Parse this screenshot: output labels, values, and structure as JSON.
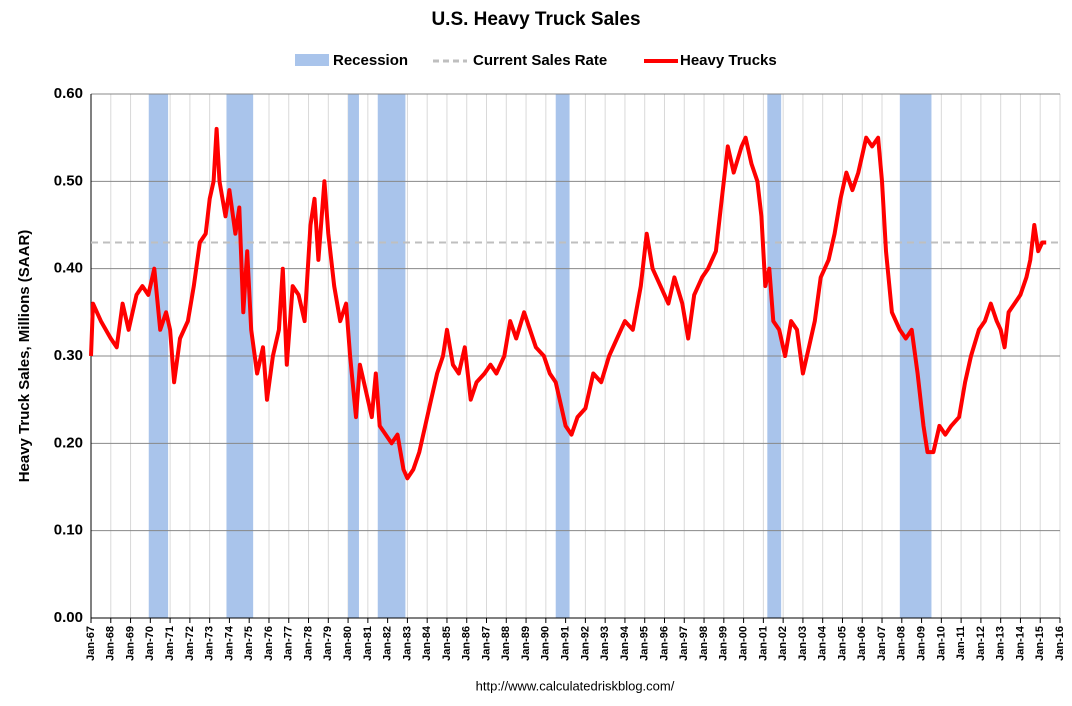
{
  "chart_data": {
    "type": "line",
    "title": "U.S. Heavy Truck Sales",
    "ylabel": "Heavy Truck Sales, Millions (SAAR)",
    "source": "http://www.calculatedriskblog.com/",
    "ylim": [
      0,
      0.6
    ],
    "yticks": [
      {
        "value": 0,
        "label": "0.00"
      },
      {
        "value": 0.1,
        "label": "0.10"
      },
      {
        "value": 0.2,
        "label": "0.20"
      },
      {
        "value": 0.3,
        "label": "0.30"
      },
      {
        "value": 0.4,
        "label": "0.40"
      },
      {
        "value": 0.5,
        "label": "0.50"
      },
      {
        "value": 0.6,
        "label": "0.60"
      }
    ],
    "xlim": [
      1967,
      2016
    ],
    "xticks": [
      {
        "value": 1967,
        "label": "Jan-67"
      },
      {
        "value": 1968,
        "label": "Jan-68"
      },
      {
        "value": 1969,
        "label": "Jan-69"
      },
      {
        "value": 1970,
        "label": "Jan-70"
      },
      {
        "value": 1971,
        "label": "Jan-71"
      },
      {
        "value": 1972,
        "label": "Jan-72"
      },
      {
        "value": 1973,
        "label": "Jan-73"
      },
      {
        "value": 1974,
        "label": "Jan-74"
      },
      {
        "value": 1975,
        "label": "Jan-75"
      },
      {
        "value": 1976,
        "label": "Jan-76"
      },
      {
        "value": 1977,
        "label": "Jan-77"
      },
      {
        "value": 1978,
        "label": "Jan-78"
      },
      {
        "value": 1979,
        "label": "Jan-79"
      },
      {
        "value": 1980,
        "label": "Jan-80"
      },
      {
        "value": 1981,
        "label": "Jan-81"
      },
      {
        "value": 1982,
        "label": "Jan-82"
      },
      {
        "value": 1983,
        "label": "Jan-83"
      },
      {
        "value": 1984,
        "label": "Jan-84"
      },
      {
        "value": 1985,
        "label": "Jan-85"
      },
      {
        "value": 1986,
        "label": "Jan-86"
      },
      {
        "value": 1987,
        "label": "Jan-87"
      },
      {
        "value": 1988,
        "label": "Jan-88"
      },
      {
        "value": 1989,
        "label": "Jan-89"
      },
      {
        "value": 1990,
        "label": "Jan-90"
      },
      {
        "value": 1991,
        "label": "Jan-91"
      },
      {
        "value": 1992,
        "label": "Jan-92"
      },
      {
        "value": 1993,
        "label": "Jan-93"
      },
      {
        "value": 1994,
        "label": "Jan-94"
      },
      {
        "value": 1995,
        "label": "Jan-95"
      },
      {
        "value": 1996,
        "label": "Jan-96"
      },
      {
        "value": 1997,
        "label": "Jan-97"
      },
      {
        "value": 1998,
        "label": "Jan-98"
      },
      {
        "value": 1999,
        "label": "Jan-99"
      },
      {
        "value": 2000,
        "label": "Jan-00"
      },
      {
        "value": 2001,
        "label": "Jan-01"
      },
      {
        "value": 2002,
        "label": "Jan-02"
      },
      {
        "value": 2003,
        "label": "Jan-03"
      },
      {
        "value": 2004,
        "label": "Jan-04"
      },
      {
        "value": 2005,
        "label": "Jan-05"
      },
      {
        "value": 2006,
        "label": "Jan-06"
      },
      {
        "value": 2007,
        "label": "Jan-07"
      },
      {
        "value": 2008,
        "label": "Jan-08"
      },
      {
        "value": 2009,
        "label": "Jan-09"
      },
      {
        "value": 2010,
        "label": "Jan-10"
      },
      {
        "value": 2011,
        "label": "Jan-11"
      },
      {
        "value": 2012,
        "label": "Jan-12"
      },
      {
        "value": 2013,
        "label": "Jan-13"
      },
      {
        "value": 2014,
        "label": "Jan-14"
      },
      {
        "value": 2015,
        "label": "Jan-15"
      },
      {
        "value": 2016,
        "label": "Jan-16"
      }
    ],
    "grid": true,
    "recession": {
      "name": "Recession",
      "color": "#a9c4eb",
      "periods": [
        [
          1969.92,
          1970.9
        ],
        [
          1973.85,
          1975.2
        ],
        [
          1980.0,
          1980.55
        ],
        [
          1981.5,
          1982.9
        ],
        [
          1990.5,
          1991.2
        ],
        [
          2001.2,
          2001.9
        ],
        [
          2007.9,
          2009.5
        ]
      ]
    },
    "reference": {
      "name": "Current Sales Rate",
      "value": 0.43,
      "color": "#bfbfbf"
    },
    "series": [
      {
        "name": "Heavy Trucks",
        "color": "#ff0000",
        "x": [
          1967.0,
          1967.1,
          1967.5,
          1968.0,
          1968.3,
          1968.6,
          1968.9,
          1969.3,
          1969.6,
          1969.9,
          1970.2,
          1970.5,
          1970.8,
          1971.0,
          1971.2,
          1971.5,
          1971.9,
          1972.2,
          1972.5,
          1972.8,
          1973.0,
          1973.2,
          1973.35,
          1973.5,
          1973.8,
          1974.0,
          1974.3,
          1974.5,
          1974.7,
          1974.9,
          1975.1,
          1975.4,
          1975.7,
          1975.9,
          1976.2,
          1976.5,
          1976.7,
          1976.9,
          1977.2,
          1977.5,
          1977.8,
          1978.1,
          1978.3,
          1978.5,
          1978.8,
          1979.0,
          1979.3,
          1979.6,
          1979.9,
          1980.1,
          1980.4,
          1980.6,
          1980.9,
          1981.2,
          1981.4,
          1981.6,
          1981.9,
          1982.2,
          1982.5,
          1982.8,
          1983.0,
          1983.3,
          1983.6,
          1983.9,
          1984.2,
          1984.5,
          1984.8,
          1985.0,
          1985.3,
          1985.6,
          1985.9,
          1986.2,
          1986.5,
          1986.9,
          1987.2,
          1987.5,
          1987.9,
          1988.2,
          1988.5,
          1988.9,
          1989.2,
          1989.5,
          1989.9,
          1990.2,
          1990.5,
          1990.8,
          1991.0,
          1991.3,
          1991.6,
          1992.0,
          1992.4,
          1992.8,
          1993.2,
          1993.6,
          1994.0,
          1994.4,
          1994.8,
          1995.1,
          1995.4,
          1995.8,
          1996.2,
          1996.5,
          1996.9,
          1997.2,
          1997.5,
          1997.9,
          1998.2,
          1998.6,
          1998.9,
          1999.2,
          1999.5,
          1999.9,
          2000.1,
          2000.4,
          2000.7,
          2000.9,
          2001.1,
          2001.3,
          2001.5,
          2001.8,
          2002.1,
          2002.4,
          2002.7,
          2003.0,
          2003.3,
          2003.6,
          2003.9,
          2004.3,
          2004.6,
          2004.9,
          2005.2,
          2005.5,
          2005.8,
          2006.2,
          2006.5,
          2006.8,
          2007.0,
          2007.2,
          2007.5,
          2007.9,
          2008.2,
          2008.5,
          2008.8,
          2009.1,
          2009.3,
          2009.6,
          2009.9,
          2010.2,
          2010.5,
          2010.9,
          2011.2,
          2011.5,
          2011.9,
          2012.2,
          2012.5,
          2012.8,
          2013.0,
          2013.2,
          2013.4,
          2013.7,
          2014.0,
          2014.3,
          2014.5,
          2014.7,
          2014.9,
          2015.1,
          2015.3
        ],
        "values": [
          0.3,
          0.36,
          0.34,
          0.32,
          0.31,
          0.36,
          0.33,
          0.37,
          0.38,
          0.37,
          0.4,
          0.33,
          0.35,
          0.33,
          0.27,
          0.32,
          0.34,
          0.38,
          0.43,
          0.44,
          0.48,
          0.5,
          0.56,
          0.5,
          0.46,
          0.49,
          0.44,
          0.47,
          0.35,
          0.42,
          0.33,
          0.28,
          0.31,
          0.25,
          0.3,
          0.33,
          0.4,
          0.29,
          0.38,
          0.37,
          0.34,
          0.45,
          0.48,
          0.41,
          0.5,
          0.44,
          0.38,
          0.34,
          0.36,
          0.3,
          0.23,
          0.29,
          0.26,
          0.23,
          0.28,
          0.22,
          0.21,
          0.2,
          0.21,
          0.17,
          0.16,
          0.17,
          0.19,
          0.22,
          0.25,
          0.28,
          0.3,
          0.33,
          0.29,
          0.28,
          0.31,
          0.25,
          0.27,
          0.28,
          0.29,
          0.28,
          0.3,
          0.34,
          0.32,
          0.35,
          0.33,
          0.31,
          0.3,
          0.28,
          0.27,
          0.24,
          0.22,
          0.21,
          0.23,
          0.24,
          0.28,
          0.27,
          0.3,
          0.32,
          0.34,
          0.33,
          0.38,
          0.44,
          0.4,
          0.38,
          0.36,
          0.39,
          0.36,
          0.32,
          0.37,
          0.39,
          0.4,
          0.42,
          0.48,
          0.54,
          0.51,
          0.54,
          0.55,
          0.52,
          0.5,
          0.46,
          0.38,
          0.4,
          0.34,
          0.33,
          0.3,
          0.34,
          0.33,
          0.28,
          0.31,
          0.34,
          0.39,
          0.41,
          0.44,
          0.48,
          0.51,
          0.49,
          0.51,
          0.55,
          0.54,
          0.55,
          0.5,
          0.42,
          0.35,
          0.33,
          0.32,
          0.33,
          0.28,
          0.22,
          0.19,
          0.19,
          0.22,
          0.21,
          0.22,
          0.23,
          0.27,
          0.3,
          0.33,
          0.34,
          0.36,
          0.34,
          0.33,
          0.31,
          0.35,
          0.36,
          0.37,
          0.39,
          0.41,
          0.45,
          0.42,
          0.43,
          0.43
        ]
      }
    ]
  }
}
